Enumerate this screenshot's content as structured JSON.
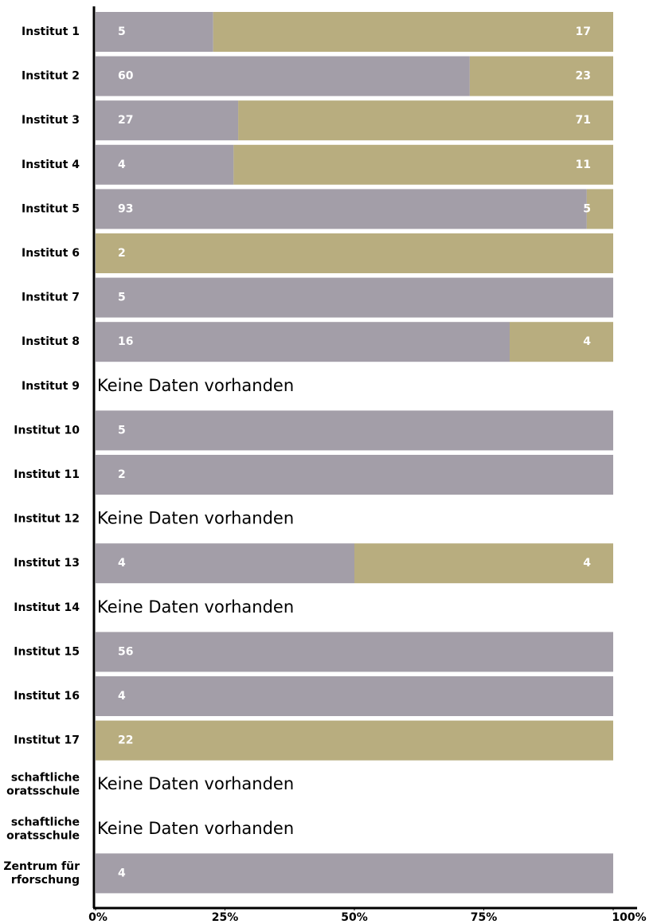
{
  "chart_data": {
    "type": "stacked_bar_100_horizontal",
    "categories": [
      "Institut 1",
      "Institut 2",
      "Institut 3",
      "Institut 4",
      "Institut 5",
      "Institut 6",
      "Institut 7",
      "Institut 8",
      "Institut 9",
      "Institut 10",
      "Institut 11",
      "Institut 12",
      "Institut 13",
      "Institut 14",
      "Institut 15",
      "Institut 16",
      "Institut 17",
      [
        "schaftliche",
        "oratsschule"
      ],
      [
        "schaftliche",
        "oratsschule"
      ],
      [
        "Zentrum für",
        "rforschung"
      ]
    ],
    "series": [
      {
        "color": "#a39ea8",
        "values": [
          5,
          60,
          27,
          4,
          93,
          null,
          5,
          16,
          null,
          5,
          2,
          null,
          4,
          null,
          56,
          4,
          null,
          null,
          null,
          4
        ]
      },
      {
        "color": "#b8ad7f",
        "values": [
          17,
          23,
          71,
          11,
          5,
          2,
          null,
          4,
          null,
          null,
          null,
          null,
          4,
          null,
          null,
          null,
          22,
          null,
          null,
          null
        ]
      }
    ],
    "no_data_label": "Keine Daten vorhanden",
    "xlim": [
      0,
      100
    ],
    "xticks": [
      {
        "value": 0,
        "label": "0%"
      },
      {
        "value": 25,
        "label": "25%"
      },
      {
        "value": 50,
        "label": "50%"
      },
      {
        "value": 75,
        "label": "75%"
      },
      {
        "value": 100,
        "label": "100%"
      }
    ]
  }
}
